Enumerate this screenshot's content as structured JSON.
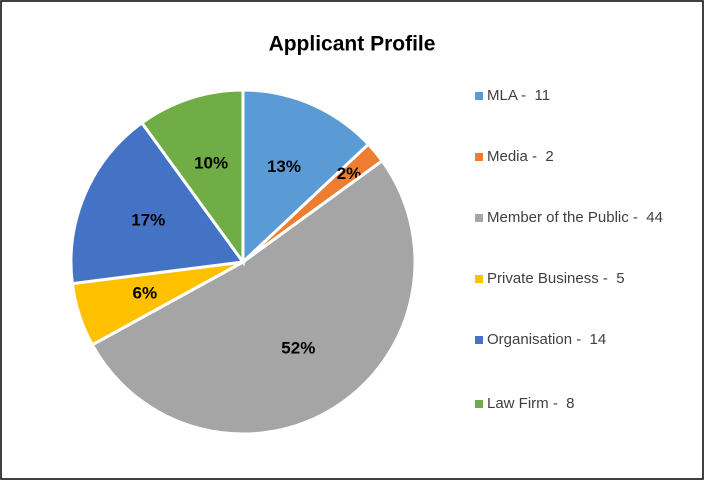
{
  "chart_data": {
    "type": "pie",
    "title": "Applicant Profile",
    "categories": [
      "MLA -  11",
      "Media -  2",
      "Member of the Public -  44",
      "Private Business -  5",
      "Organisation -  14",
      "Law Firm -  8"
    ],
    "values": [
      13,
      2,
      52,
      6,
      17,
      10
    ],
    "value_labels": [
      "13%",
      "2%",
      "52%",
      "6%",
      "17%",
      "10%"
    ],
    "colors": [
      "#5b9bd5",
      "#ed7d31",
      "#a5a5a5",
      "#ffc000",
      "#4472c4",
      "#70ad47"
    ],
    "legend": "right"
  }
}
